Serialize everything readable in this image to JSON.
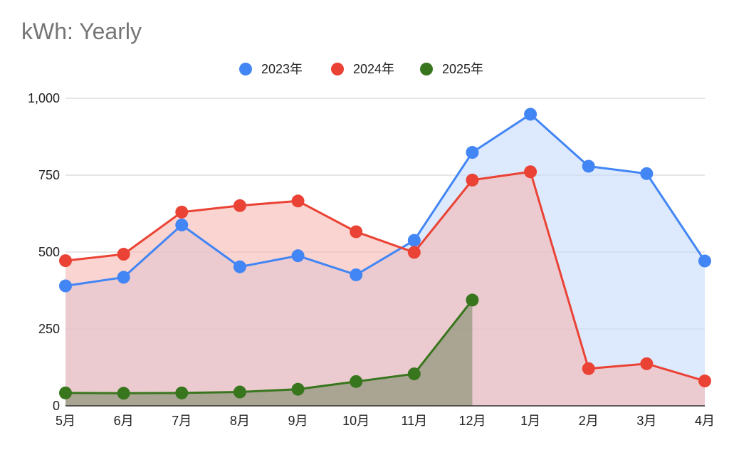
{
  "chart_data": {
    "type": "area",
    "title": "kWh: Yearly",
    "categories": [
      "5月",
      "6月",
      "7月",
      "8月",
      "9月",
      "10月",
      "11月",
      "12月",
      "1月",
      "2月",
      "3月",
      "4月"
    ],
    "ylim": [
      0,
      1000
    ],
    "yticks": [
      0,
      250,
      500,
      750,
      1000
    ],
    "ytick_labels": [
      "0",
      "250",
      "500",
      "750",
      "1,000"
    ],
    "legend_position": "top-center",
    "grid": true,
    "series": [
      {
        "name": "2023年",
        "color": "#4285f4",
        "fill": "#c6dafc",
        "values": [
          390,
          418,
          588,
          452,
          488,
          426,
          538,
          824,
          948,
          779,
          755,
          471
        ]
      },
      {
        "name": "2024年",
        "color": "#ea4335",
        "fill": "#f6b8b2",
        "values": [
          472,
          493,
          630,
          651,
          666,
          566,
          499,
          734,
          761,
          121,
          137,
          81
        ]
      },
      {
        "name": "2025年",
        "color": "#38761d",
        "fill": "#7f8a6a",
        "values": [
          42,
          41,
          42,
          45,
          54,
          79,
          104,
          344,
          null,
          null,
          null,
          null
        ]
      }
    ]
  }
}
